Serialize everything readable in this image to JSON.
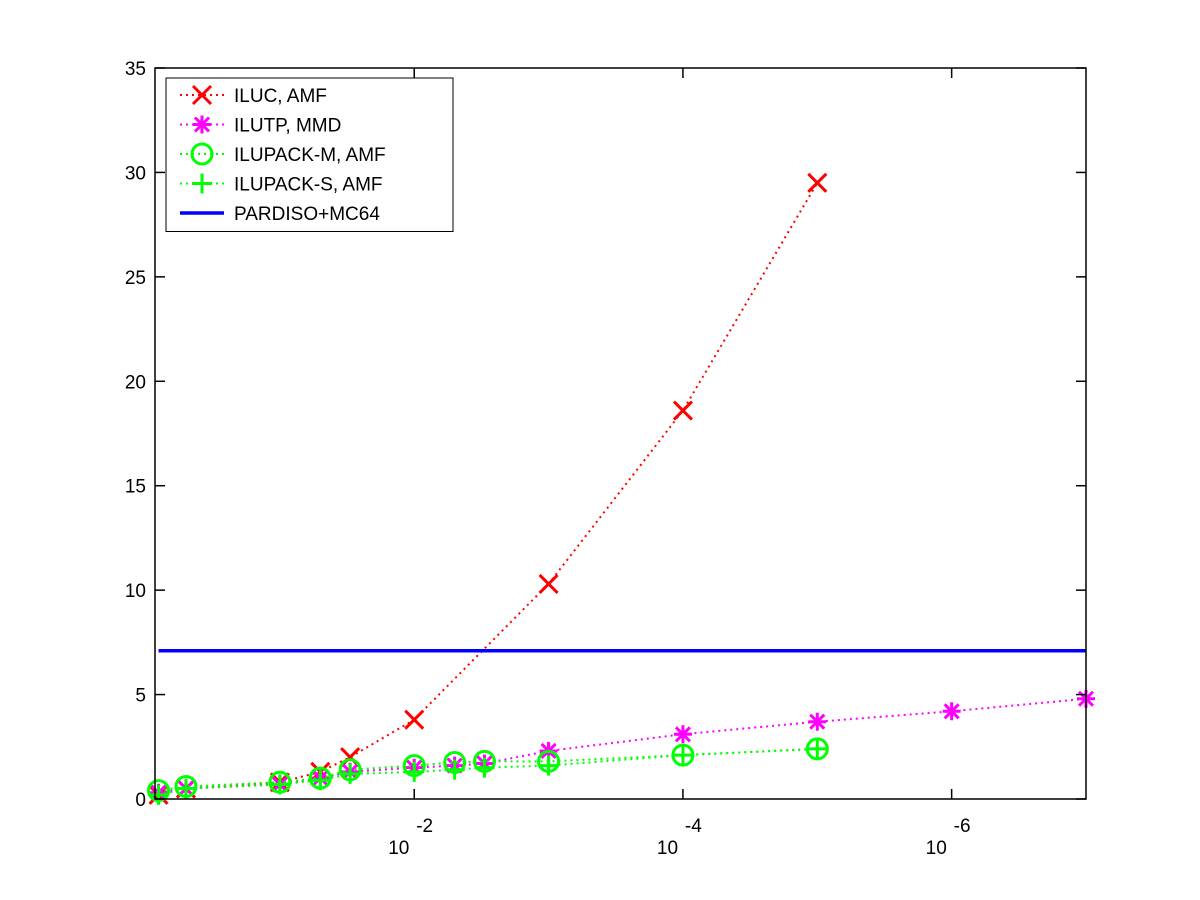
{
  "chart_data": {
    "type": "line",
    "xscale": "log",
    "x_direction": "decreasing",
    "xlim": [
      0.85,
      1e-07
    ],
    "ylim": [
      0,
      35
    ],
    "yticks": [
      0,
      5,
      10,
      15,
      20,
      25,
      30,
      35
    ],
    "xticks": [
      {
        "value": 0.01,
        "base": "10",
        "exponent": "-2"
      },
      {
        "value": 0.0001,
        "base": "10",
        "exponent": "-4"
      },
      {
        "value": 1e-06,
        "base": "10",
        "exponent": "-6"
      }
    ],
    "title": "",
    "xlabel": "",
    "ylabel": "",
    "grid": false,
    "legend": "top-left",
    "series": [
      {
        "name": "ILUC, AMF",
        "color": "#ff0000",
        "marker": "x",
        "linestyle": "dotted",
        "x": [
          0.8,
          0.5,
          0.1,
          0.05,
          0.03,
          0.01,
          0.001,
          0.0001,
          1e-05
        ],
        "y": [
          0.2,
          0.5,
          0.8,
          1.3,
          2.0,
          3.8,
          10.3,
          18.6,
          29.5
        ]
      },
      {
        "name": "ILUTP, MMD",
        "color": "#ff00ff",
        "marker": "asterisk",
        "linestyle": "dotted",
        "x": [
          0.8,
          0.5,
          0.1,
          0.05,
          0.03,
          0.01,
          0.005,
          0.003,
          0.001,
          0.0001,
          1e-05,
          1e-06,
          1e-07
        ],
        "y": [
          0.3,
          0.5,
          0.7,
          1.0,
          1.3,
          1.5,
          1.6,
          1.7,
          2.3,
          3.1,
          3.7,
          4.2,
          4.8
        ]
      },
      {
        "name": "ILUPACK-M, AMF",
        "color": "#00ff00",
        "marker": "circle",
        "linestyle": "dotted",
        "x": [
          0.8,
          0.5,
          0.1,
          0.05,
          0.03,
          0.01,
          0.005,
          0.003,
          0.001,
          0.0001,
          1e-05
        ],
        "y": [
          0.4,
          0.6,
          0.8,
          1.0,
          1.4,
          1.6,
          1.75,
          1.8,
          1.8,
          2.1,
          2.4
        ]
      },
      {
        "name": "ILUPACK-S, AMF",
        "color": "#00ff00",
        "marker": "plus",
        "linestyle": "dotted",
        "x": [
          0.8,
          0.5,
          0.1,
          0.05,
          0.03,
          0.01,
          0.005,
          0.003,
          0.001,
          0.0001,
          1e-05
        ],
        "y": [
          0.2,
          0.5,
          0.7,
          0.9,
          1.2,
          1.3,
          1.4,
          1.5,
          1.6,
          2.1,
          2.4
        ]
      },
      {
        "name": "PARDISO+MC64",
        "color": "#0000ff",
        "marker": "none",
        "linestyle": "solid",
        "x": [
          0.8,
          1e-07
        ],
        "y": [
          7.1,
          7.1
        ]
      }
    ]
  }
}
